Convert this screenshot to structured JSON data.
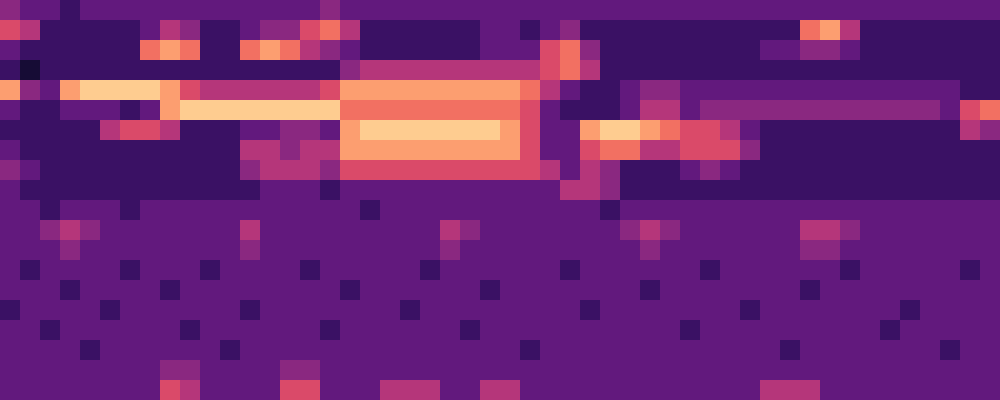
{
  "chart_data": {
    "type": "heatmap",
    "tick_labels": false,
    "zlim": [
      0,
      10
    ],
    "cells": [
      [
        4,
        3,
        3,
        2,
        3,
        3,
        3,
        3,
        3,
        3,
        3,
        3,
        3,
        3,
        3,
        3,
        4,
        3,
        3,
        3,
        3,
        3,
        3,
        3,
        3,
        3,
        3,
        3,
        3,
        3,
        3,
        3,
        3,
        3,
        3,
        3,
        3,
        3,
        3,
        3,
        3,
        3,
        3,
        3,
        3,
        3,
        3,
        3,
        3,
        3
      ],
      [
        6,
        5,
        2,
        2,
        2,
        2,
        2,
        3,
        5,
        4,
        2,
        2,
        3,
        4,
        4,
        6,
        7,
        5,
        2,
        2,
        2,
        2,
        2,
        2,
        3,
        3,
        2,
        3,
        4,
        2,
        2,
        2,
        2,
        2,
        2,
        2,
        2,
        2,
        2,
        2,
        7,
        8,
        5,
        2,
        2,
        2,
        2,
        2,
        2,
        2
      ],
      [
        3,
        2,
        2,
        2,
        2,
        2,
        2,
        7,
        8,
        7,
        2,
        2,
        7,
        8,
        7,
        5,
        4,
        3,
        2,
        2,
        2,
        2,
        2,
        2,
        3,
        3,
        3,
        6,
        7,
        4,
        2,
        2,
        2,
        2,
        2,
        2,
        2,
        2,
        3,
        3,
        4,
        4,
        3,
        2,
        2,
        2,
        2,
        2,
        2,
        2
      ],
      [
        2,
        1,
        2,
        2,
        2,
        2,
        2,
        2,
        2,
        2,
        2,
        2,
        2,
        2,
        2,
        2,
        2,
        4,
        5,
        5,
        5,
        5,
        5,
        5,
        5,
        5,
        5,
        6,
        7,
        5,
        2,
        2,
        2,
        2,
        2,
        2,
        2,
        2,
        2,
        2,
        2,
        2,
        2,
        2,
        2,
        2,
        2,
        2,
        2,
        2
      ],
      [
        8,
        4,
        3,
        8,
        9,
        9,
        9,
        9,
        8,
        6,
        5,
        5,
        5,
        5,
        5,
        5,
        6,
        8,
        8,
        8,
        8,
        8,
        8,
        8,
        8,
        8,
        7,
        5,
        3,
        2,
        2,
        3,
        4,
        4,
        3,
        3,
        3,
        3,
        3,
        3,
        3,
        3,
        3,
        3,
        3,
        3,
        3,
        3,
        2,
        2
      ],
      [
        3,
        2,
        2,
        3,
        3,
        3,
        2,
        3,
        8,
        9,
        9,
        9,
        9,
        9,
        9,
        9,
        9,
        7,
        7,
        7,
        7,
        7,
        7,
        7,
        7,
        7,
        6,
        3,
        2,
        2,
        2,
        3,
        5,
        5,
        3,
        4,
        4,
        4,
        4,
        4,
        4,
        4,
        4,
        4,
        4,
        4,
        4,
        3,
        6,
        7
      ],
      [
        2,
        2,
        2,
        2,
        2,
        5,
        6,
        6,
        5,
        2,
        2,
        2,
        3,
        3,
        4,
        4,
        3,
        8,
        9,
        9,
        9,
        9,
        9,
        9,
        9,
        8,
        6,
        3,
        3,
        8,
        9,
        9,
        8,
        7,
        6,
        6,
        5,
        3,
        2,
        2,
        2,
        2,
        2,
        2,
        2,
        2,
        2,
        2,
        5,
        4
      ],
      [
        3,
        2,
        2,
        2,
        2,
        2,
        2,
        2,
        2,
        2,
        2,
        2,
        5,
        5,
        4,
        5,
        5,
        8,
        8,
        8,
        8,
        8,
        8,
        8,
        8,
        8,
        6,
        3,
        3,
        6,
        7,
        7,
        5,
        5,
        6,
        6,
        6,
        4,
        2,
        2,
        2,
        2,
        2,
        2,
        2,
        2,
        2,
        2,
        2,
        2
      ],
      [
        4,
        3,
        2,
        2,
        2,
        2,
        2,
        2,
        2,
        2,
        2,
        2,
        4,
        5,
        5,
        5,
        4,
        6,
        6,
        6,
        6,
        6,
        6,
        6,
        6,
        6,
        6,
        5,
        3,
        5,
        4,
        2,
        2,
        2,
        3,
        4,
        3,
        2,
        2,
        2,
        2,
        2,
        2,
        2,
        2,
        2,
        2,
        2,
        2,
        2
      ],
      [
        3,
        2,
        2,
        2,
        2,
        2,
        2,
        2,
        2,
        2,
        2,
        2,
        2,
        3,
        3,
        3,
        2,
        3,
        3,
        3,
        3,
        3,
        3,
        3,
        3,
        3,
        3,
        3,
        5,
        5,
        4,
        2,
        2,
        2,
        2,
        2,
        2,
        2,
        2,
        2,
        2,
        2,
        2,
        2,
        2,
        2,
        2,
        2,
        2,
        2
      ],
      [
        3,
        3,
        2,
        3,
        3,
        3,
        2,
        3,
        3,
        3,
        3,
        3,
        3,
        3,
        3,
        3,
        3,
        3,
        2,
        3,
        3,
        3,
        3,
        3,
        3,
        3,
        3,
        3,
        3,
        3,
        2,
        3,
        3,
        3,
        3,
        3,
        3,
        3,
        3,
        3,
        3,
        3,
        3,
        3,
        3,
        3,
        3,
        3,
        3,
        3
      ],
      [
        3,
        3,
        4,
        5,
        4,
        3,
        3,
        3,
        3,
        3,
        3,
        3,
        5,
        3,
        3,
        3,
        3,
        3,
        3,
        3,
        3,
        3,
        5,
        4,
        3,
        3,
        3,
        3,
        3,
        3,
        3,
        4,
        5,
        4,
        3,
        3,
        3,
        3,
        3,
        3,
        5,
        5,
        4,
        3,
        3,
        3,
        3,
        3,
        3,
        3
      ],
      [
        3,
        3,
        3,
        4,
        3,
        3,
        3,
        3,
        3,
        3,
        3,
        3,
        4,
        3,
        3,
        3,
        3,
        3,
        3,
        3,
        3,
        3,
        4,
        3,
        3,
        3,
        3,
        3,
        3,
        3,
        3,
        3,
        4,
        3,
        3,
        3,
        3,
        3,
        3,
        3,
        4,
        4,
        3,
        3,
        3,
        3,
        3,
        3,
        3,
        3
      ],
      [
        3,
        2,
        3,
        3,
        3,
        3,
        2,
        3,
        3,
        3,
        2,
        3,
        3,
        3,
        3,
        2,
        3,
        3,
        3,
        3,
        3,
        2,
        3,
        3,
        3,
        3,
        3,
        3,
        2,
        3,
        3,
        3,
        3,
        3,
        3,
        2,
        3,
        3,
        3,
        3,
        3,
        3,
        2,
        3,
        3,
        3,
        3,
        3,
        2,
        3
      ],
      [
        3,
        3,
        3,
        2,
        3,
        3,
        3,
        3,
        2,
        3,
        3,
        3,
        3,
        3,
        3,
        3,
        3,
        2,
        3,
        3,
        3,
        3,
        3,
        3,
        2,
        3,
        3,
        3,
        3,
        3,
        3,
        3,
        2,
        3,
        3,
        3,
        3,
        3,
        3,
        3,
        2,
        3,
        3,
        3,
        3,
        3,
        3,
        3,
        3,
        3
      ],
      [
        2,
        3,
        3,
        3,
        3,
        2,
        3,
        3,
        3,
        3,
        3,
        3,
        2,
        3,
        3,
        3,
        3,
        3,
        3,
        3,
        2,
        3,
        3,
        3,
        3,
        3,
        3,
        3,
        3,
        2,
        3,
        3,
        3,
        3,
        3,
        3,
        3,
        2,
        3,
        3,
        3,
        3,
        3,
        3,
        3,
        2,
        3,
        3,
        3,
        3
      ],
      [
        3,
        3,
        2,
        3,
        3,
        3,
        3,
        3,
        3,
        2,
        3,
        3,
        3,
        3,
        3,
        3,
        2,
        3,
        3,
        3,
        3,
        3,
        3,
        2,
        3,
        3,
        3,
        3,
        3,
        3,
        3,
        3,
        3,
        3,
        2,
        3,
        3,
        3,
        3,
        3,
        3,
        3,
        3,
        3,
        2,
        3,
        3,
        3,
        3,
        3
      ],
      [
        3,
        3,
        3,
        3,
        2,
        3,
        3,
        3,
        3,
        3,
        3,
        2,
        3,
        3,
        3,
        3,
        3,
        3,
        3,
        3,
        3,
        3,
        3,
        3,
        3,
        3,
        2,
        3,
        3,
        3,
        3,
        3,
        3,
        3,
        3,
        3,
        3,
        3,
        3,
        2,
        3,
        3,
        3,
        3,
        3,
        3,
        3,
        2,
        3,
        3
      ],
      [
        3,
        3,
        3,
        3,
        3,
        3,
        3,
        3,
        4,
        4,
        3,
        3,
        3,
        3,
        4,
        4,
        3,
        3,
        3,
        3,
        3,
        3,
        3,
        3,
        3,
        3,
        3,
        3,
        3,
        3,
        3,
        3,
        3,
        3,
        3,
        3,
        3,
        3,
        3,
        3,
        3,
        3,
        3,
        3,
        3,
        3,
        3,
        3,
        3,
        3
      ],
      [
        3,
        3,
        3,
        3,
        3,
        3,
        3,
        3,
        6,
        5,
        3,
        3,
        3,
        3,
        6,
        6,
        3,
        3,
        3,
        5,
        5,
        5,
        3,
        3,
        5,
        5,
        3,
        3,
        3,
        3,
        3,
        3,
        3,
        3,
        3,
        3,
        3,
        3,
        5,
        5,
        5,
        3,
        3,
        3,
        3,
        3,
        3,
        3,
        3,
        3
      ]
    ]
  }
}
